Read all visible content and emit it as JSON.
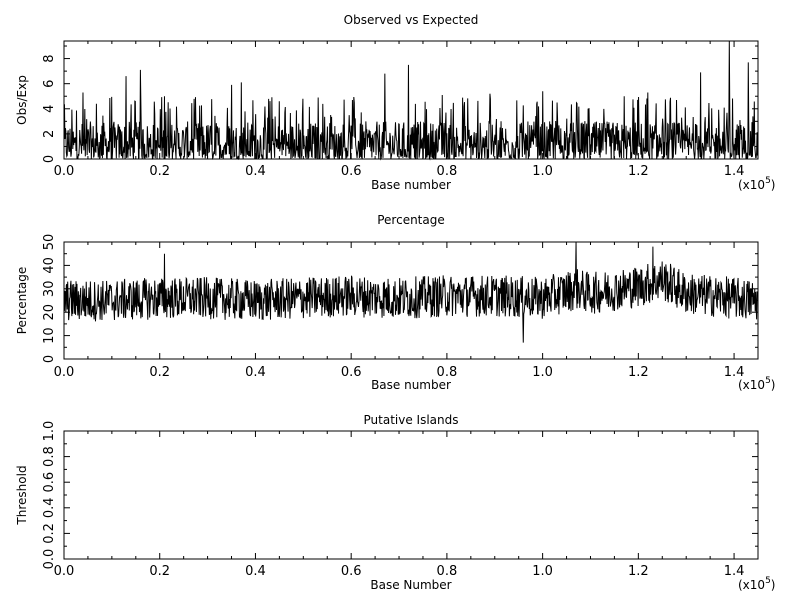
{
  "chart_data": [
    {
      "type": "line",
      "title": "Observed vs Expected",
      "xlabel": "Base number",
      "ylabel": "Obs/Exp",
      "x_multiplier": {
        "prefix": "(x10",
        "exp": "5",
        "suffix": ")"
      },
      "xlim": [
        0,
        1.45
      ],
      "ylim": [
        0,
        9.4
      ],
      "xticks": [
        0,
        0.2,
        0.4,
        0.6,
        0.8,
        1.0,
        1.2,
        1.4
      ],
      "xtick_labels": [
        "0.0",
        "0.2",
        "0.4",
        "0.6",
        "0.8",
        "1.0",
        "1.2",
        "1.4"
      ],
      "yticks": [
        0,
        2,
        4,
        6,
        8
      ],
      "ytick_labels": [
        "0",
        "2",
        "4",
        "6",
        "8"
      ],
      "series": [
        {
          "baseline": 1.0,
          "noise_range": [
            0,
            3
          ],
          "x": [
            0.0,
            0.04,
            0.13,
            0.16,
            0.21,
            0.35,
            0.37,
            0.45,
            0.67,
            0.72,
            0.79,
            0.89,
            1.0,
            1.03,
            1.17,
            1.22,
            1.33,
            1.39,
            1.43
          ],
          "peaks": [
            4.0,
            5.3,
            6.6,
            7.1,
            5.0,
            5.9,
            6.1,
            4.6,
            6.8,
            7.5,
            5.1,
            5.2,
            5.4,
            4.5,
            5.0,
            5.3,
            6.9,
            9.4,
            7.7
          ]
        }
      ],
      "grid": false
    },
    {
      "type": "line",
      "title": "Percentage",
      "xlabel": "Base number",
      "ylabel": "Percentage",
      "x_multiplier": {
        "prefix": "(x10",
        "exp": "5",
        "suffix": ")"
      },
      "xlim": [
        0,
        1.45
      ],
      "ylim": [
        0,
        50
      ],
      "xticks": [
        0,
        0.2,
        0.4,
        0.6,
        0.8,
        1.0,
        1.2,
        1.4
      ],
      "xtick_labels": [
        "0.0",
        "0.2",
        "0.4",
        "0.6",
        "0.8",
        "1.0",
        "1.2",
        "1.4"
      ],
      "yticks": [
        0,
        10,
        20,
        30,
        40,
        50
      ],
      "ytick_labels": [
        "0",
        "10",
        "20",
        "30",
        "40",
        "50"
      ],
      "series": [
        {
          "x": [
            0.0,
            0.1,
            0.2,
            0.3,
            0.4,
            0.5,
            0.6,
            0.7,
            0.8,
            0.9,
            1.0,
            1.07,
            1.1,
            1.2,
            1.25,
            1.3,
            1.4,
            1.45
          ],
          "y": [
            25,
            25,
            26,
            26,
            25,
            26,
            27,
            26,
            27,
            27,
            26,
            30,
            28,
            31,
            34,
            28,
            26,
            25
          ],
          "fluctuation": 9,
          "extremes": [
            {
              "x": 0.21,
              "y": 45
            },
            {
              "x": 0.96,
              "y": 7
            },
            {
              "x": 1.07,
              "y": 50
            },
            {
              "x": 1.23,
              "y": 48
            }
          ]
        }
      ],
      "grid": false
    },
    {
      "type": "line",
      "title": "Putative Islands",
      "xlabel": "Base Number",
      "ylabel": "Threshold",
      "x_multiplier": {
        "prefix": "(x10",
        "exp": "5",
        "suffix": ")"
      },
      "xlim": [
        0,
        1.45
      ],
      "ylim": [
        0,
        1.0
      ],
      "xticks": [
        0,
        0.2,
        0.4,
        0.6,
        0.8,
        1.0,
        1.2,
        1.4
      ],
      "xtick_labels": [
        "0.0",
        "0.2",
        "0.4",
        "0.6",
        "0.8",
        "1.0",
        "1.2",
        "1.4"
      ],
      "yticks": [
        0,
        0.2,
        0.4,
        0.6,
        0.8,
        1.0
      ],
      "ytick_labels": [
        "0.0",
        "0.2",
        "0.4",
        "0.6",
        "0.8",
        "1.0"
      ],
      "series": [],
      "grid": false
    }
  ]
}
